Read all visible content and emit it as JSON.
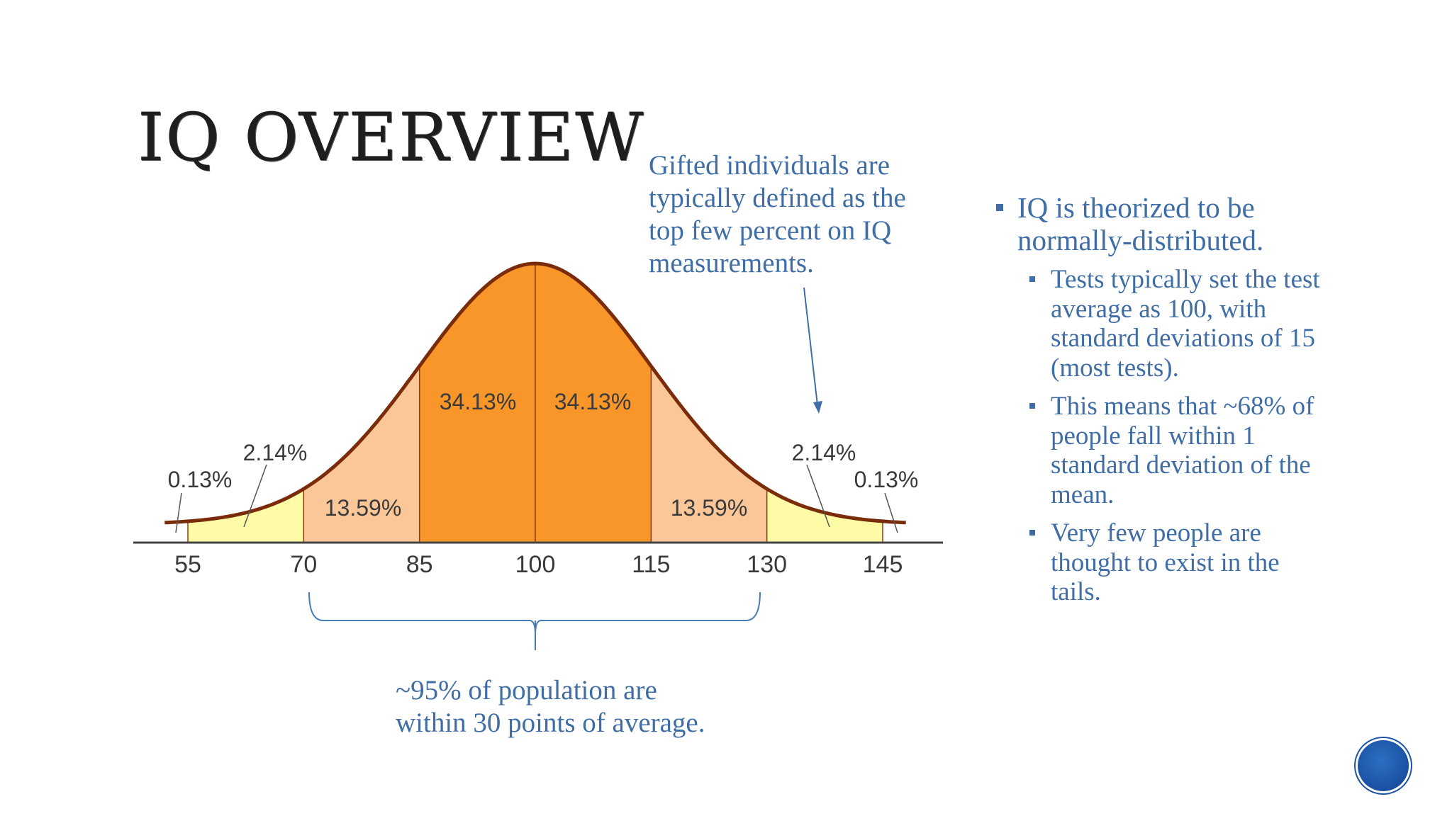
{
  "slide": {
    "title": "IQ OVERVIEW",
    "gifted_note": "Gifted individuals are typically defined as the top few percent on IQ measurements.",
    "population_note": "~95% of population are within 30 points of average.",
    "bullets": [
      {
        "text": "IQ is theorized to be normally-distributed.",
        "sub": [
          "Tests typically set the test average as 100, with standard deviations of 15 (most tests).",
          "This means that ~68% of people fall within 1 standard deviation of the mean.",
          "Very few people are thought to exist in the tails."
        ]
      }
    ]
  },
  "chart_data": {
    "type": "area",
    "x_ticks": [
      "55",
      "70",
      "85",
      "100",
      "115",
      "130",
      "145"
    ],
    "regions": [
      {
        "from": 55,
        "to": 70,
        "label": "2.14%",
        "color": "#fdfba6"
      },
      {
        "from": 70,
        "to": 85,
        "label": "13.59%",
        "color": "#fbc799"
      },
      {
        "from": 85,
        "to": 100,
        "label": "34.13%",
        "color": "#f8962a"
      },
      {
        "from": 100,
        "to": 115,
        "label": "34.13%",
        "color": "#f8962a"
      },
      {
        "from": 115,
        "to": 130,
        "label": "13.59%",
        "color": "#fbc799"
      },
      {
        "from": 130,
        "to": 145,
        "label": "2.14%",
        "color": "#fdfba6"
      }
    ],
    "tail_labels": [
      "0.13%",
      "0.13%"
    ],
    "mean": 100,
    "sd": 15,
    "curve_color": "#7a2c0a"
  }
}
